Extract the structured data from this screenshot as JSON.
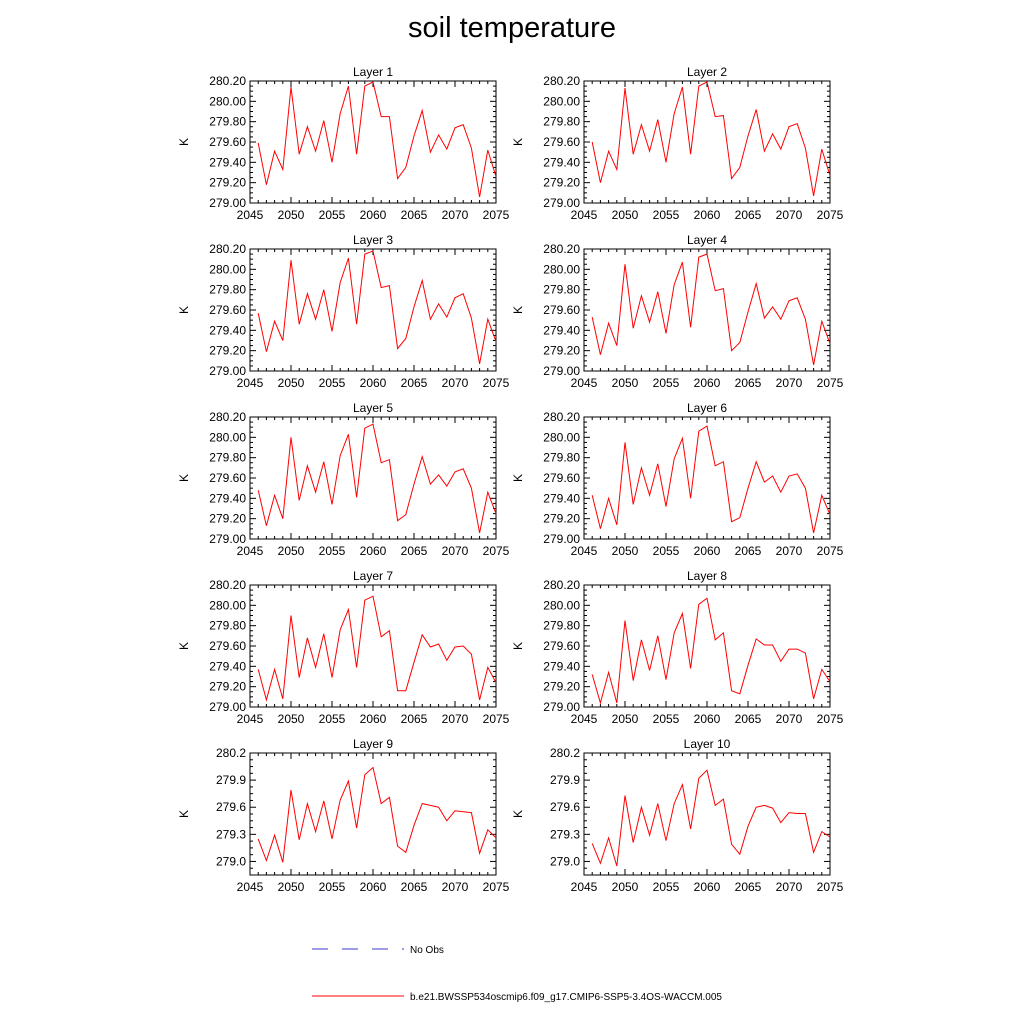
{
  "title": "soil temperature",
  "legend": {
    "obs_label": "No Obs",
    "model_label": "b.e21.BWSSP534oscmip6.f09_g17.CMIP6-SSP5-3.4OS-WACCM.005",
    "obs_color": "#3b3bd6",
    "model_color": "#ff0000"
  },
  "chart_data": [
    {
      "type": "line",
      "title": "Layer 1",
      "ylabel": "K",
      "xlim": [
        2045,
        2075
      ],
      "ylim": [
        279.0,
        280.2
      ],
      "xticks": [
        2045,
        2050,
        2055,
        2060,
        2065,
        2070,
        2075
      ],
      "yticks": [
        "279.00",
        "279.20",
        "279.40",
        "279.60",
        "279.80",
        "280.00",
        "280.20"
      ],
      "x": [
        2046,
        2047,
        2048,
        2049,
        2050,
        2051,
        2052,
        2053,
        2054,
        2055,
        2056,
        2057,
        2058,
        2059,
        2060,
        2061,
        2062,
        2063,
        2064,
        2065,
        2066,
        2067,
        2068,
        2069,
        2070,
        2071,
        2072,
        2073,
        2074,
        2075
      ],
      "series": [
        {
          "name": "b.e21.BWSSP534oscmip6.f09_g17.CMIP6-SSP5-3.4OS-WACCM.005",
          "values": [
            279.59,
            279.18,
            279.51,
            279.33,
            280.14,
            279.48,
            279.75,
            279.51,
            279.81,
            279.4,
            279.88,
            280.15,
            279.48,
            280.15,
            280.19,
            279.85,
            279.85,
            279.24,
            279.35,
            279.66,
            279.91,
            279.5,
            279.67,
            279.53,
            279.74,
            279.77,
            279.54,
            279.06,
            279.52,
            279.26
          ]
        }
      ]
    },
    {
      "type": "line",
      "title": "Layer 2",
      "ylabel": "K",
      "xlim": [
        2045,
        2075
      ],
      "ylim": [
        279.0,
        280.2
      ],
      "xticks": [
        2045,
        2050,
        2055,
        2060,
        2065,
        2070,
        2075
      ],
      "yticks": [
        "279.00",
        "279.20",
        "279.40",
        "279.60",
        "279.80",
        "280.00",
        "280.20"
      ],
      "x": [
        2046,
        2047,
        2048,
        2049,
        2050,
        2051,
        2052,
        2053,
        2054,
        2055,
        2056,
        2057,
        2058,
        2059,
        2060,
        2061,
        2062,
        2063,
        2064,
        2065,
        2066,
        2067,
        2068,
        2069,
        2070,
        2071,
        2072,
        2073,
        2074,
        2075
      ],
      "series": [
        {
          "name": "b.e21.BWSSP534oscmip6.f09_g17.CMIP6-SSP5-3.4OS-WACCM.005",
          "values": [
            279.6,
            279.2,
            279.51,
            279.33,
            280.13,
            279.48,
            279.77,
            279.51,
            279.82,
            279.4,
            279.88,
            280.14,
            279.48,
            280.15,
            280.19,
            279.85,
            279.86,
            279.24,
            279.35,
            279.66,
            279.92,
            279.51,
            279.68,
            279.53,
            279.75,
            279.78,
            279.54,
            279.07,
            279.53,
            279.27
          ]
        }
      ]
    },
    {
      "type": "line",
      "title": "Layer 3",
      "ylabel": "K",
      "xlim": [
        2045,
        2075
      ],
      "ylim": [
        279.0,
        280.2
      ],
      "xticks": [
        2045,
        2050,
        2055,
        2060,
        2065,
        2070,
        2075
      ],
      "yticks": [
        "279.00",
        "279.20",
        "279.40",
        "279.60",
        "279.80",
        "280.00",
        "280.20"
      ],
      "x": [
        2046,
        2047,
        2048,
        2049,
        2050,
        2051,
        2052,
        2053,
        2054,
        2055,
        2056,
        2057,
        2058,
        2059,
        2060,
        2061,
        2062,
        2063,
        2064,
        2065,
        2066,
        2067,
        2068,
        2069,
        2070,
        2071,
        2072,
        2073,
        2074,
        2075
      ],
      "series": [
        {
          "name": "b.e21.BWSSP534oscmip6.f09_g17.CMIP6-SSP5-3.4OS-WACCM.005",
          "values": [
            279.57,
            279.19,
            279.49,
            279.3,
            280.09,
            279.46,
            279.76,
            279.51,
            279.8,
            279.39,
            279.87,
            280.11,
            279.46,
            280.15,
            280.18,
            279.82,
            279.84,
            279.22,
            279.32,
            279.63,
            279.89,
            279.51,
            279.66,
            279.53,
            279.72,
            279.76,
            279.52,
            279.07,
            279.51,
            279.29
          ]
        }
      ]
    },
    {
      "type": "line",
      "title": "Layer 4",
      "ylabel": "K",
      "xlim": [
        2045,
        2075
      ],
      "ylim": [
        279.0,
        280.2
      ],
      "xticks": [
        2045,
        2050,
        2055,
        2060,
        2065,
        2070,
        2075
      ],
      "yticks": [
        "279.00",
        "279.20",
        "279.40",
        "279.60",
        "279.80",
        "280.00",
        "280.20"
      ],
      "x": [
        2046,
        2047,
        2048,
        2049,
        2050,
        2051,
        2052,
        2053,
        2054,
        2055,
        2056,
        2057,
        2058,
        2059,
        2060,
        2061,
        2062,
        2063,
        2064,
        2065,
        2066,
        2067,
        2068,
        2069,
        2070,
        2071,
        2072,
        2073,
        2074,
        2075
      ],
      "series": [
        {
          "name": "b.e21.BWSSP534oscmip6.f09_g17.CMIP6-SSP5-3.4OS-WACCM.005",
          "values": [
            279.53,
            279.16,
            279.47,
            279.25,
            280.05,
            279.42,
            279.74,
            279.48,
            279.78,
            279.37,
            279.85,
            280.07,
            279.43,
            280.12,
            280.15,
            279.79,
            279.81,
            279.2,
            279.28,
            279.58,
            279.86,
            279.52,
            279.63,
            279.51,
            279.69,
            279.72,
            279.51,
            279.06,
            279.49,
            279.27
          ]
        }
      ]
    },
    {
      "type": "line",
      "title": "Layer 5",
      "ylabel": "K",
      "xlim": [
        2045,
        2075
      ],
      "ylim": [
        279.0,
        280.2
      ],
      "xticks": [
        2045,
        2050,
        2055,
        2060,
        2065,
        2070,
        2075
      ],
      "yticks": [
        "279.00",
        "279.20",
        "279.40",
        "279.60",
        "279.80",
        "280.00",
        "280.20"
      ],
      "x": [
        2046,
        2047,
        2048,
        2049,
        2050,
        2051,
        2052,
        2053,
        2054,
        2055,
        2056,
        2057,
        2058,
        2059,
        2060,
        2061,
        2062,
        2063,
        2064,
        2065,
        2066,
        2067,
        2068,
        2069,
        2070,
        2071,
        2072,
        2073,
        2074,
        2075
      ],
      "series": [
        {
          "name": "b.e21.BWSSP534oscmip6.f09_g17.CMIP6-SSP5-3.4OS-WACCM.005",
          "values": [
            279.48,
            279.13,
            279.43,
            279.2,
            280.0,
            279.38,
            279.72,
            279.46,
            279.76,
            279.34,
            279.82,
            280.03,
            279.41,
            280.09,
            280.13,
            279.75,
            279.78,
            279.18,
            279.24,
            279.54,
            279.81,
            279.54,
            279.63,
            279.52,
            279.66,
            279.69,
            279.5,
            279.06,
            279.46,
            279.25
          ]
        }
      ]
    },
    {
      "type": "line",
      "title": "Layer 6",
      "ylabel": "K",
      "xlim": [
        2045,
        2075
      ],
      "ylim": [
        279.0,
        280.2
      ],
      "xticks": [
        2045,
        2050,
        2055,
        2060,
        2065,
        2070,
        2075
      ],
      "yticks": [
        "279.00",
        "279.20",
        "279.40",
        "279.60",
        "279.80",
        "280.00",
        "280.20"
      ],
      "x": [
        2046,
        2047,
        2048,
        2049,
        2050,
        2051,
        2052,
        2053,
        2054,
        2055,
        2056,
        2057,
        2058,
        2059,
        2060,
        2061,
        2062,
        2063,
        2064,
        2065,
        2066,
        2067,
        2068,
        2069,
        2070,
        2071,
        2072,
        2073,
        2074,
        2075
      ],
      "series": [
        {
          "name": "b.e21.BWSSP534oscmip6.f09_g17.CMIP6-SSP5-3.4OS-WACCM.005",
          "values": [
            279.43,
            279.1,
            279.4,
            279.14,
            279.95,
            279.34,
            279.7,
            279.43,
            279.74,
            279.32,
            279.79,
            279.99,
            279.4,
            280.06,
            280.11,
            279.72,
            279.76,
            279.17,
            279.21,
            279.5,
            279.76,
            279.56,
            279.62,
            279.46,
            279.62,
            279.64,
            279.5,
            279.06,
            279.43,
            279.24
          ]
        }
      ]
    },
    {
      "type": "line",
      "title": "Layer 7",
      "ylabel": "K",
      "xlim": [
        2045,
        2075
      ],
      "ylim": [
        279.0,
        280.2
      ],
      "xticks": [
        2045,
        2050,
        2055,
        2060,
        2065,
        2070,
        2075
      ],
      "yticks": [
        "279.00",
        "279.20",
        "279.40",
        "279.60",
        "279.80",
        "280.00",
        "280.20"
      ],
      "x": [
        2046,
        2047,
        2048,
        2049,
        2050,
        2051,
        2052,
        2053,
        2054,
        2055,
        2056,
        2057,
        2058,
        2059,
        2060,
        2061,
        2062,
        2063,
        2064,
        2065,
        2066,
        2067,
        2068,
        2069,
        2070,
        2071,
        2072,
        2073,
        2074,
        2075
      ],
      "series": [
        {
          "name": "b.e21.BWSSP534oscmip6.f09_g17.CMIP6-SSP5-3.4OS-WACCM.005",
          "values": [
            279.37,
            279.07,
            279.37,
            279.08,
            279.9,
            279.29,
            279.68,
            279.39,
            279.72,
            279.29,
            279.76,
            279.96,
            279.39,
            280.05,
            280.09,
            279.69,
            279.75,
            279.16,
            279.16,
            279.44,
            279.71,
            279.59,
            279.62,
            279.46,
            279.59,
            279.6,
            279.52,
            279.07,
            279.39,
            279.24
          ]
        }
      ]
    },
    {
      "type": "line",
      "title": "Layer 8",
      "ylabel": "K",
      "xlim": [
        2045,
        2075
      ],
      "ylim": [
        279.0,
        280.2
      ],
      "xticks": [
        2045,
        2050,
        2055,
        2060,
        2065,
        2070,
        2075
      ],
      "yticks": [
        "279.00",
        "279.20",
        "279.40",
        "279.60",
        "279.80",
        "280.00",
        "280.20"
      ],
      "x": [
        2046,
        2047,
        2048,
        2049,
        2050,
        2051,
        2052,
        2053,
        2054,
        2055,
        2056,
        2057,
        2058,
        2059,
        2060,
        2061,
        2062,
        2063,
        2064,
        2065,
        2066,
        2067,
        2068,
        2069,
        2070,
        2071,
        2072,
        2073,
        2074,
        2075
      ],
      "series": [
        {
          "name": "b.e21.BWSSP534oscmip6.f09_g17.CMIP6-SSP5-3.4OS-WACCM.005",
          "values": [
            279.32,
            279.04,
            279.34,
            279.04,
            279.85,
            279.26,
            279.66,
            279.36,
            279.7,
            279.27,
            279.73,
            279.92,
            279.38,
            280.01,
            280.07,
            279.66,
            279.73,
            279.16,
            279.13,
            279.41,
            279.67,
            279.61,
            279.61,
            279.45,
            279.57,
            279.57,
            279.53,
            279.08,
            279.37,
            279.25
          ]
        }
      ]
    },
    {
      "type": "line",
      "title": "Layer 9",
      "ylabel": "K",
      "xlim": [
        2045,
        2075
      ],
      "ylim": [
        278.85,
        280.2
      ],
      "xticks": [
        2045,
        2050,
        2055,
        2060,
        2065,
        2070,
        2075
      ],
      "yticks": [
        "279.0",
        "279.3",
        "279.6",
        "279.9",
        "280.2"
      ],
      "x": [
        2046,
        2047,
        2048,
        2049,
        2050,
        2051,
        2052,
        2053,
        2054,
        2055,
        2056,
        2057,
        2058,
        2059,
        2060,
        2061,
        2062,
        2063,
        2064,
        2065,
        2066,
        2067,
        2068,
        2069,
        2070,
        2071,
        2072,
        2073,
        2074,
        2075
      ],
      "series": [
        {
          "name": "b.e21.BWSSP534oscmip6.f09_g17.CMIP6-SSP5-3.4OS-WACCM.005",
          "values": [
            279.25,
            279.01,
            279.29,
            278.99,
            279.79,
            279.24,
            279.64,
            279.33,
            279.67,
            279.25,
            279.68,
            279.89,
            279.37,
            279.96,
            280.04,
            279.64,
            279.71,
            279.17,
            279.1,
            279.4,
            279.64,
            279.62,
            279.6,
            279.45,
            279.56,
            279.55,
            279.54,
            279.09,
            279.35,
            279.26
          ]
        }
      ]
    },
    {
      "type": "line",
      "title": "Layer 10",
      "ylabel": "K",
      "xlim": [
        2045,
        2075
      ],
      "ylim": [
        278.85,
        280.2
      ],
      "xticks": [
        2045,
        2050,
        2055,
        2060,
        2065,
        2070,
        2075
      ],
      "yticks": [
        "279.0",
        "279.3",
        "279.6",
        "279.9",
        "280.2"
      ],
      "x": [
        2046,
        2047,
        2048,
        2049,
        2050,
        2051,
        2052,
        2053,
        2054,
        2055,
        2056,
        2057,
        2058,
        2059,
        2060,
        2061,
        2062,
        2063,
        2064,
        2065,
        2066,
        2067,
        2068,
        2069,
        2070,
        2071,
        2072,
        2073,
        2074,
        2075
      ],
      "series": [
        {
          "name": "b.e21.BWSSP534oscmip6.f09_g17.CMIP6-SSP5-3.4OS-WACCM.005",
          "values": [
            279.2,
            278.98,
            279.26,
            278.95,
            279.73,
            279.21,
            279.6,
            279.29,
            279.64,
            279.23,
            279.64,
            279.85,
            279.36,
            279.92,
            280.01,
            279.62,
            279.69,
            279.19,
            279.08,
            279.39,
            279.6,
            279.62,
            279.59,
            279.43,
            279.54,
            279.53,
            279.53,
            279.1,
            279.33,
            279.27
          ]
        }
      ]
    }
  ]
}
